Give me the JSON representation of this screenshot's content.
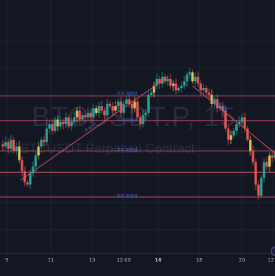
{
  "watermark": {
    "title": "BTCUSDT.P, 15",
    "subtitle": "BTCUSDT Perpetual Contract"
  },
  "colors": {
    "background": "#131722",
    "grid": "#1e2436",
    "horizontal_line": "#e0556f",
    "trend_line": "#e0556f",
    "candle_up": "#26a69a",
    "candle_down": "#ef5350",
    "candle_neutral": "#e8c15a",
    "annotation": "#4f6fd6"
  },
  "chart_data": {
    "type": "candlestick",
    "symbol": "BTCUSDT.P",
    "interval": "15",
    "x_tick_labels": [
      "9",
      "11",
      "13",
      "12:00",
      "16",
      "18",
      "20",
      "12"
    ],
    "bold_ticks": [
      "16"
    ],
    "y_range": [
      0,
      100
    ],
    "horizontal_levels": [
      {
        "value": 69.5,
        "label": "지지 저항선"
      },
      {
        "value": 58.5,
        "label": "지지 저항선"
      },
      {
        "value": 45.0,
        "label": "지지 저항선"
      },
      {
        "value": 35.5,
        "label": ""
      },
      {
        "value": 24.5,
        "label": "지지 저항선"
      }
    ],
    "trend_lines": [
      {
        "label": "추세선",
        "from": [
          7.5,
          32
        ],
        "to": [
          61,
          78
        ]
      },
      {
        "label": "하락추세선",
        "from": [
          70,
          74
        ],
        "to": [
          100,
          44
        ]
      }
    ],
    "price_path": [
      [
        0,
        48
      ],
      [
        1,
        47
      ],
      [
        2,
        49
      ],
      [
        3,
        46
      ],
      [
        4,
        50
      ],
      [
        5,
        45
      ],
      [
        6,
        47
      ],
      [
        7,
        41
      ],
      [
        8,
        36
      ],
      [
        9,
        31
      ],
      [
        10,
        30
      ],
      [
        11,
        35
      ],
      [
        12,
        38
      ],
      [
        13,
        43
      ],
      [
        14,
        47
      ],
      [
        15,
        50
      ],
      [
        16,
        49
      ],
      [
        17,
        55
      ],
      [
        18,
        57
      ],
      [
        19,
        54
      ],
      [
        20,
        59
      ],
      [
        21,
        56
      ],
      [
        22,
        58
      ],
      [
        23,
        57
      ],
      [
        24,
        60
      ],
      [
        25,
        56
      ],
      [
        26,
        58
      ],
      [
        27,
        60
      ],
      [
        28,
        63
      ],
      [
        29,
        59
      ],
      [
        30,
        61
      ],
      [
        31,
        60
      ],
      [
        32,
        62
      ],
      [
        33,
        60
      ],
      [
        34,
        64
      ],
      [
        35,
        62
      ],
      [
        36,
        65
      ],
      [
        37,
        63
      ],
      [
        38,
        61
      ],
      [
        39,
        66
      ],
      [
        40,
        65
      ],
      [
        41,
        63
      ],
      [
        42,
        65
      ],
      [
        43,
        67
      ],
      [
        44,
        62
      ],
      [
        45,
        66
      ],
      [
        46,
        68
      ],
      [
        47,
        66
      ],
      [
        48,
        64
      ],
      [
        49,
        67
      ],
      [
        50,
        60
      ],
      [
        51,
        57
      ],
      [
        52,
        61
      ],
      [
        53,
        62
      ],
      [
        54,
        70
      ],
      [
        55,
        71
      ],
      [
        56,
        74
      ],
      [
        57,
        77
      ],
      [
        58,
        75
      ],
      [
        59,
        78
      ],
      [
        60,
        76
      ],
      [
        61,
        77
      ],
      [
        62,
        74
      ],
      [
        63,
        75
      ],
      [
        64,
        72
      ],
      [
        65,
        73
      ],
      [
        66,
        74
      ],
      [
        67,
        76
      ],
      [
        68,
        79
      ],
      [
        69,
        80
      ],
      [
        70,
        76
      ],
      [
        71,
        78
      ],
      [
        72,
        75
      ],
      [
        73,
        72
      ],
      [
        74,
        73
      ],
      [
        75,
        71
      ],
      [
        76,
        70
      ],
      [
        77,
        66
      ],
      [
        78,
        68
      ],
      [
        79,
        64
      ],
      [
        80,
        65
      ],
      [
        81,
        63
      ],
      [
        82,
        55
      ],
      [
        83,
        50
      ],
      [
        84,
        52
      ],
      [
        85,
        54
      ],
      [
        86,
        57
      ],
      [
        87,
        58
      ],
      [
        88,
        60
      ],
      [
        89,
        55
      ],
      [
        90,
        50
      ],
      [
        91,
        45
      ],
      [
        92,
        40
      ],
      [
        93,
        30
      ],
      [
        94,
        25
      ],
      [
        95,
        33
      ],
      [
        96,
        40
      ],
      [
        97,
        38
      ],
      [
        98,
        43
      ],
      [
        99,
        42
      ],
      [
        100,
        44
      ]
    ]
  }
}
